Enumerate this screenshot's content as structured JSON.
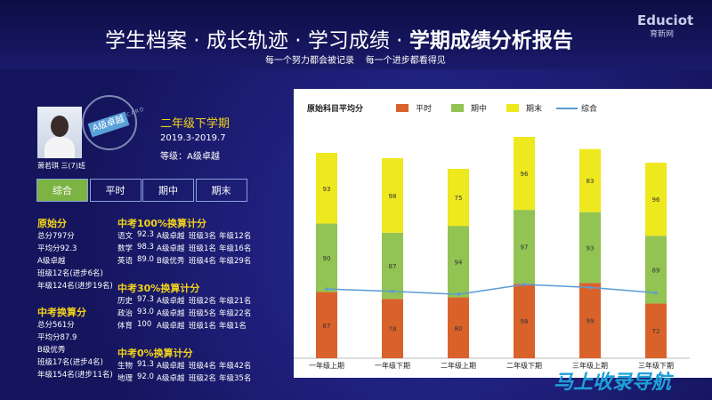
{
  "header": {
    "title": "学生档案 · 成长轨迹 · 学习成绩 · ",
    "title_bold": "学期成绩分析报告",
    "subtitle": "每一个努力都会被记录    每一个进步都看得见",
    "logo": "Educiot",
    "logo_sub": "育新网"
  },
  "profile": {
    "name": "萧若琪 三(7)班",
    "badge": "A级卓越",
    "badge_ring": "TEACH POSCARD",
    "term": "二年级下学期",
    "dates": "2019.3-2019.7",
    "level": "等级：A级卓越"
  },
  "tabs": [
    "综合",
    "平时",
    "期中",
    "期末"
  ],
  "summary": [
    {
      "title": "原始分",
      "lines": [
        "总分797分",
        "平均分92.3",
        "A级卓越",
        "班级12名(进步6名)",
        "年级124名(进步19名)"
      ]
    },
    {
      "title": "中考换算分",
      "lines": [
        "总分561分",
        "平均分87.9",
        "B级优秀",
        "班级17名(进步4名)",
        "年级154名(进步11名)"
      ]
    }
  ],
  "tables": [
    {
      "title": "中考100%换算计分",
      "rows": [
        [
          "语文",
          "92.3",
          "A级卓越",
          "班级3名",
          "年级12名"
        ],
        [
          "数学",
          "98.3",
          "A级卓越",
          "班级1名",
          "年级16名"
        ],
        [
          "英语",
          "89.0",
          "B级优秀",
          "班级4名",
          "年级29名"
        ]
      ]
    },
    {
      "title": "中考30%换算计分",
      "rows": [
        [
          "历史",
          "97.3",
          "A级卓越",
          "班级2名",
          "年级21名"
        ],
        [
          "政治",
          "93.0",
          "A级卓越",
          "班级5名",
          "年级22名"
        ],
        [
          "体育",
          "100",
          "A级卓越",
          "班级1名",
          "年级1名"
        ]
      ]
    },
    {
      "title": "中考0%换算计分",
      "rows": [
        [
          "生物",
          "91.3",
          "A级卓越",
          "班级4名",
          "年级42名"
        ],
        [
          "地理",
          "92.0",
          "A级卓越",
          "班级2名",
          "年级35名"
        ]
      ]
    }
  ],
  "watermark": "马上收录导航",
  "chart_data": {
    "type": "stacked_bar_line",
    "title": "原始科目平均分",
    "categories": [
      "一年级上期",
      "一年级下期",
      "二年级上期",
      "二年级下期",
      "三年级上期",
      "三年级下期"
    ],
    "series": [
      {
        "name": "平时",
        "color": "#d9622b",
        "values": [
          87,
          78,
          80,
          98,
          99,
          72
        ]
      },
      {
        "name": "期中",
        "color": "#92c353",
        "values": [
          90,
          87,
          94,
          97,
          93,
          89
        ]
      },
      {
        "name": "期末",
        "color": "#eee81e",
        "values": [
          93,
          98,
          75,
          96,
          83,
          96
        ]
      },
      {
        "name": "综合",
        "color": "#5b9bd5",
        "type": "line",
        "values": [
          91,
          88,
          84,
          97,
          93,
          86
        ]
      }
    ]
  }
}
